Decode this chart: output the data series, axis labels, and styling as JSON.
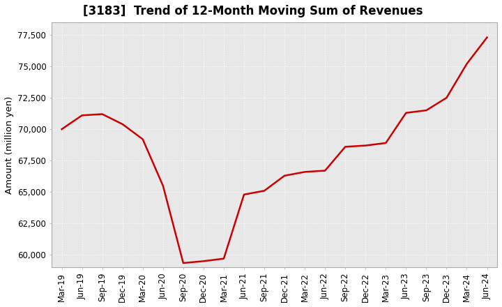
{
  "title": "[3183]  Trend of 12-Month Moving Sum of Revenues",
  "ylabel": "Amount (million yen)",
  "ylim": [
    59000,
    78500
  ],
  "yticks": [
    60000,
    62500,
    65000,
    67500,
    70000,
    72500,
    75000,
    77500
  ],
  "line_color": "#cc0000",
  "plot_bg_color": "#e8e8e8",
  "figure_bg_color": "#ffffff",
  "grid_color": "#ffffff",
  "x_labels": [
    "Mar-19",
    "Jun-19",
    "Sep-19",
    "Dec-19",
    "Mar-20",
    "Jun-20",
    "Sep-20",
    "Dec-20",
    "Mar-21",
    "Jun-21",
    "Sep-21",
    "Dec-21",
    "Mar-22",
    "Jun-22",
    "Sep-22",
    "Dec-22",
    "Mar-23",
    "Jun-23",
    "Sep-23",
    "Dec-23",
    "Mar-24",
    "Jun-24"
  ],
  "values": [
    70000,
    71100,
    71200,
    70400,
    69200,
    65500,
    59350,
    59500,
    59700,
    64800,
    65100,
    66300,
    66600,
    66700,
    68600,
    68700,
    68900,
    71300,
    71500,
    72500,
    75200,
    77300
  ],
  "title_fontsize": 12,
  "tick_fontsize": 8.5,
  "label_fontsize": 9.5
}
